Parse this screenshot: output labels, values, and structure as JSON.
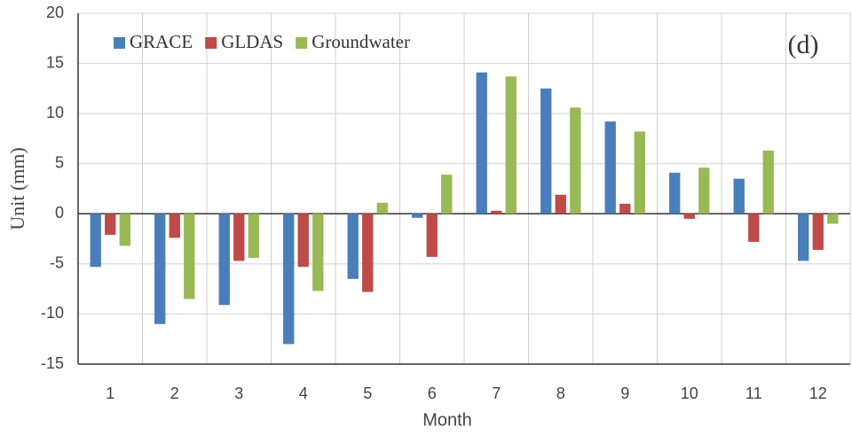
{
  "chart_data": {
    "type": "bar",
    "annotation": "(d)",
    "xlabel": "Month",
    "ylabel": "Unit (mm)",
    "categories": [
      "1",
      "2",
      "3",
      "4",
      "5",
      "6",
      "7",
      "8",
      "9",
      "10",
      "11",
      "12"
    ],
    "series": [
      {
        "name": "GRACE",
        "color": "#4a7ebb",
        "values": [
          -5.3,
          -11.0,
          -9.1,
          -13.0,
          -6.5,
          -0.4,
          14.1,
          12.5,
          9.2,
          4.1,
          3.5,
          -4.7
        ]
      },
      {
        "name": "GLDAS",
        "color": "#be4b48",
        "values": [
          -2.1,
          -2.4,
          -4.7,
          -5.3,
          -7.8,
          -4.3,
          0.3,
          1.9,
          1.0,
          -0.5,
          -2.8,
          -3.6
        ]
      },
      {
        "name": "Groundwater",
        "color": "#98b954",
        "values": [
          -3.2,
          -8.5,
          -4.4,
          -7.7,
          1.1,
          3.9,
          13.7,
          10.6,
          8.2,
          4.6,
          6.3,
          -1.0
        ]
      }
    ],
    "ylim": [
      -15,
      20
    ],
    "yticks": [
      -15,
      -10,
      -5,
      0,
      5,
      10,
      15,
      20
    ],
    "legend": "top-left",
    "grid": true
  }
}
